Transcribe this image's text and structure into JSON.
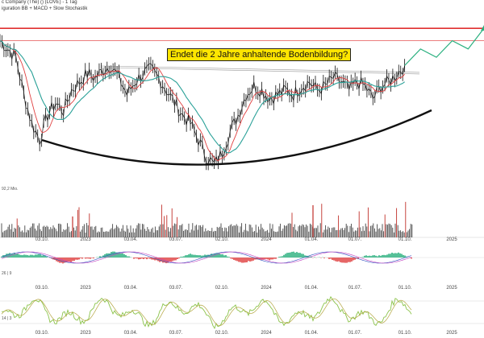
{
  "header": {
    "title": "c Company (The) () (LOVE) - 1 Tag",
    "subtitle": "iguration  BB + MACD + Slow Stochastik"
  },
  "annotation": "Endet die 2 Jahre anhaltende Bodenbildung?",
  "volume_label": "92,2 Mio.",
  "macd_label": "26 | 9",
  "stoch_label": "14 | 3",
  "colors": {
    "price": "#111111",
    "ma_fast": "#e04040",
    "ma_slow": "#2aa198",
    "resistance": "#e03030",
    "forecast": "#2ab07f",
    "volume": "#444444",
    "volume_spike": "#c0302a",
    "macd_pos": "#2ab07f",
    "macd_neg": "#e04040",
    "stoch_k": "#8bc34a",
    "stoch_d": "#b5a642"
  },
  "chart_data": [
    {
      "type": "line",
      "name": "price",
      "x_ticks": [
        "03.10.",
        "2023",
        "03.04.",
        "03.07.",
        "02.10.",
        "2024",
        "01.04.",
        "01.07.",
        "01.10.",
        "2025"
      ],
      "x": [
        0,
        2,
        4,
        6,
        8,
        10,
        12,
        14,
        16,
        18,
        20,
        22,
        24,
        26,
        28,
        30,
        32,
        34,
        36,
        38,
        40,
        42,
        44,
        46,
        48,
        50,
        52,
        54,
        56,
        58,
        60,
        62,
        64,
        66,
        68,
        70,
        72,
        74,
        76,
        78,
        80,
        82,
        84,
        86,
        88,
        90,
        92,
        94,
        96,
        98,
        100,
        102
      ],
      "values": [
        46,
        44,
        42,
        33,
        26,
        22,
        28,
        31,
        29,
        34,
        36,
        38,
        37,
        39,
        40,
        37,
        33,
        36,
        38,
        39,
        37,
        34,
        31,
        28,
        26,
        22,
        18,
        16,
        19,
        24,
        28,
        33,
        35,
        34,
        32,
        33,
        34,
        33,
        35,
        36,
        34,
        35,
        37,
        36,
        34,
        36,
        35,
        32,
        35,
        36,
        38,
        40
      ],
      "forecast": [
        [
          102,
          40
        ],
        [
          106,
          44
        ],
        [
          110,
          42
        ],
        [
          114,
          46
        ],
        [
          118,
          44
        ],
        [
          122,
          49
        ]
      ],
      "resistance_levels": [
        49,
        46
      ],
      "range_top": 39.5,
      "ylim": [
        14,
        50
      ]
    },
    {
      "type": "bar",
      "name": "volume",
      "label": "92,2 Mio."
    },
    {
      "type": "bar",
      "name": "macd",
      "label": "26 | 9"
    },
    {
      "type": "line",
      "name": "slow-stochastic",
      "label": "14 | 3",
      "ylim": [
        0,
        100
      ]
    }
  ]
}
